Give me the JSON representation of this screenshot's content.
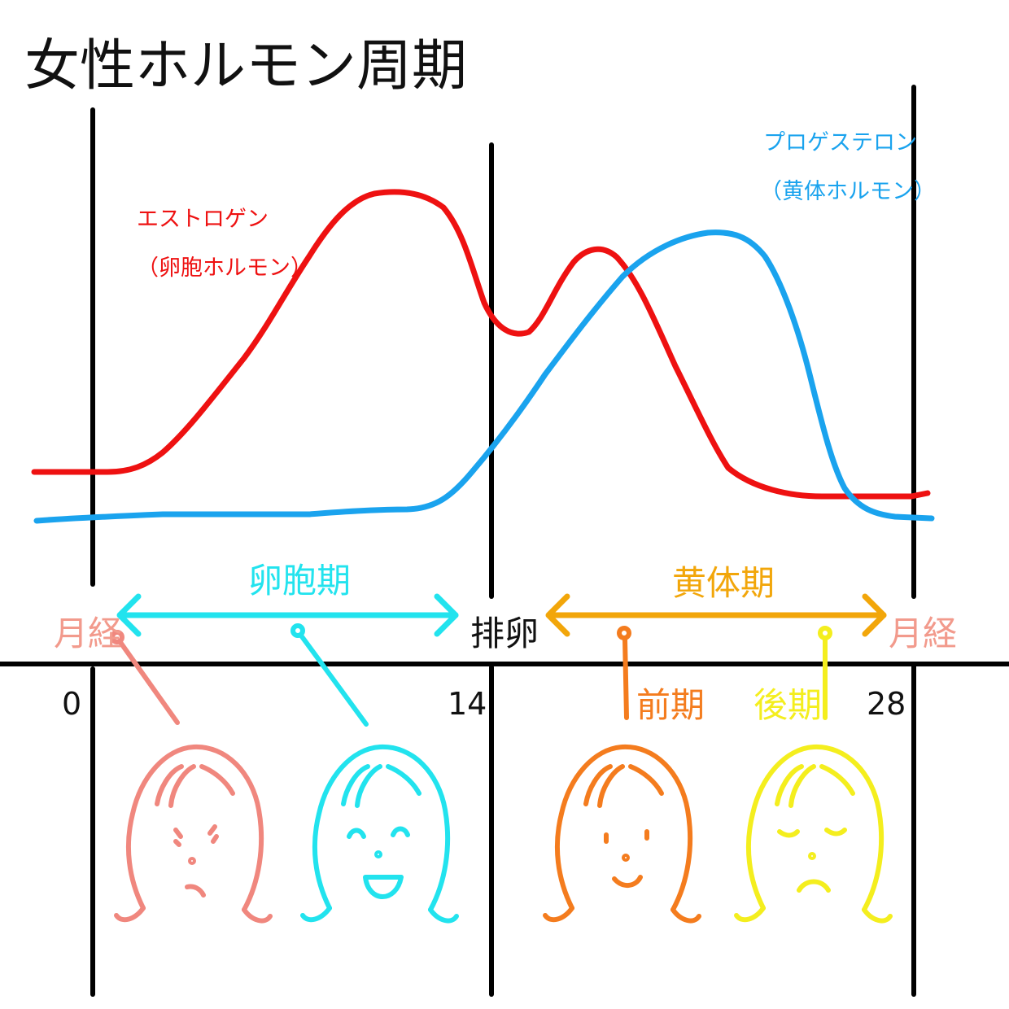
{
  "title": "女性ホルモン周期",
  "hormones": {
    "estrogen": {
      "name": "エストロゲン",
      "alias": "（卵胞ホルモン）",
      "color": "#ee1111"
    },
    "progesterone": {
      "name": "プロゲステロン",
      "alias": "（黄体ホルモン）",
      "color": "#1aa3ee"
    }
  },
  "phases": {
    "follicular": {
      "label": "卵胞期",
      "color": "#22e3ee"
    },
    "luteal": {
      "label": "黄体期",
      "color": "#f2a60a"
    },
    "early": {
      "label": "前期",
      "color": "#f47c1e"
    },
    "late": {
      "label": "後期",
      "color": "#f4ee1e"
    }
  },
  "events": {
    "menstruation_start": {
      "label": "月経",
      "color": "#f29a8c"
    },
    "ovulation": {
      "label": "排卵"
    },
    "menstruation_end": {
      "label": "月経",
      "color": "#f29a8c"
    }
  },
  "days": {
    "start": "0",
    "ovulation": "14",
    "end": "28"
  },
  "faces": [
    {
      "phase": "menstruation",
      "mood": "tired",
      "color": "#f0877e"
    },
    {
      "phase": "follicular",
      "mood": "happy",
      "color": "#22e3ee"
    },
    {
      "phase": "luteal-early",
      "mood": "calm-smile",
      "color": "#f47c1e"
    },
    {
      "phase": "luteal-late",
      "mood": "sad",
      "color": "#f4ee1e"
    }
  ]
}
